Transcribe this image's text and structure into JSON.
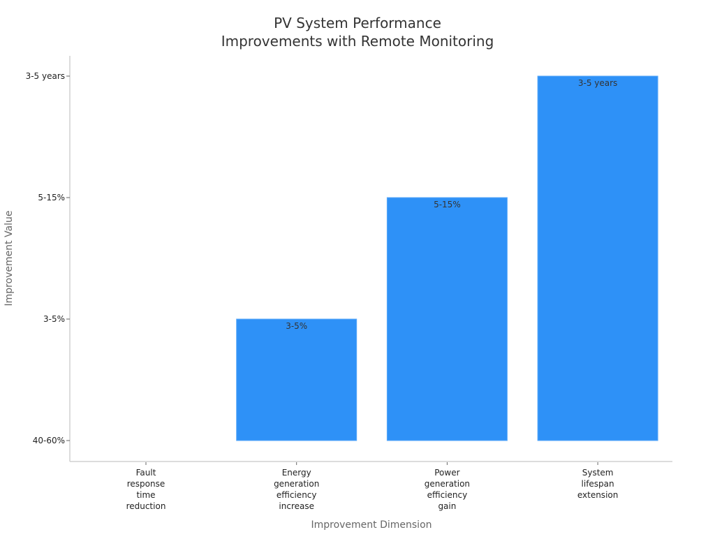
{
  "chart_data": {
    "type": "bar",
    "title_lines": [
      "PV System Performance",
      "Improvements with Remote Monitoring"
    ],
    "xlabel": "Improvement Dimension",
    "ylabel": "Improvement Value",
    "y_ticks": [
      "40-60%",
      "3-5%",
      "5-15%",
      "3-5 years"
    ],
    "categories": [
      [
        "Fault",
        "response",
        "time",
        "reduction"
      ],
      [
        "Energy",
        "generation",
        "efficiency",
        "increase"
      ],
      [
        "Power",
        "generation",
        "efficiency",
        "gain"
      ],
      [
        "System",
        "lifespan",
        "extension"
      ]
    ],
    "values": [
      0,
      1,
      2,
      3
    ],
    "data_labels": [
      "",
      "3-5%",
      "5-15%",
      "3-5 years"
    ],
    "bar_color": "#2e91f7",
    "grid": false,
    "legend": "none"
  }
}
